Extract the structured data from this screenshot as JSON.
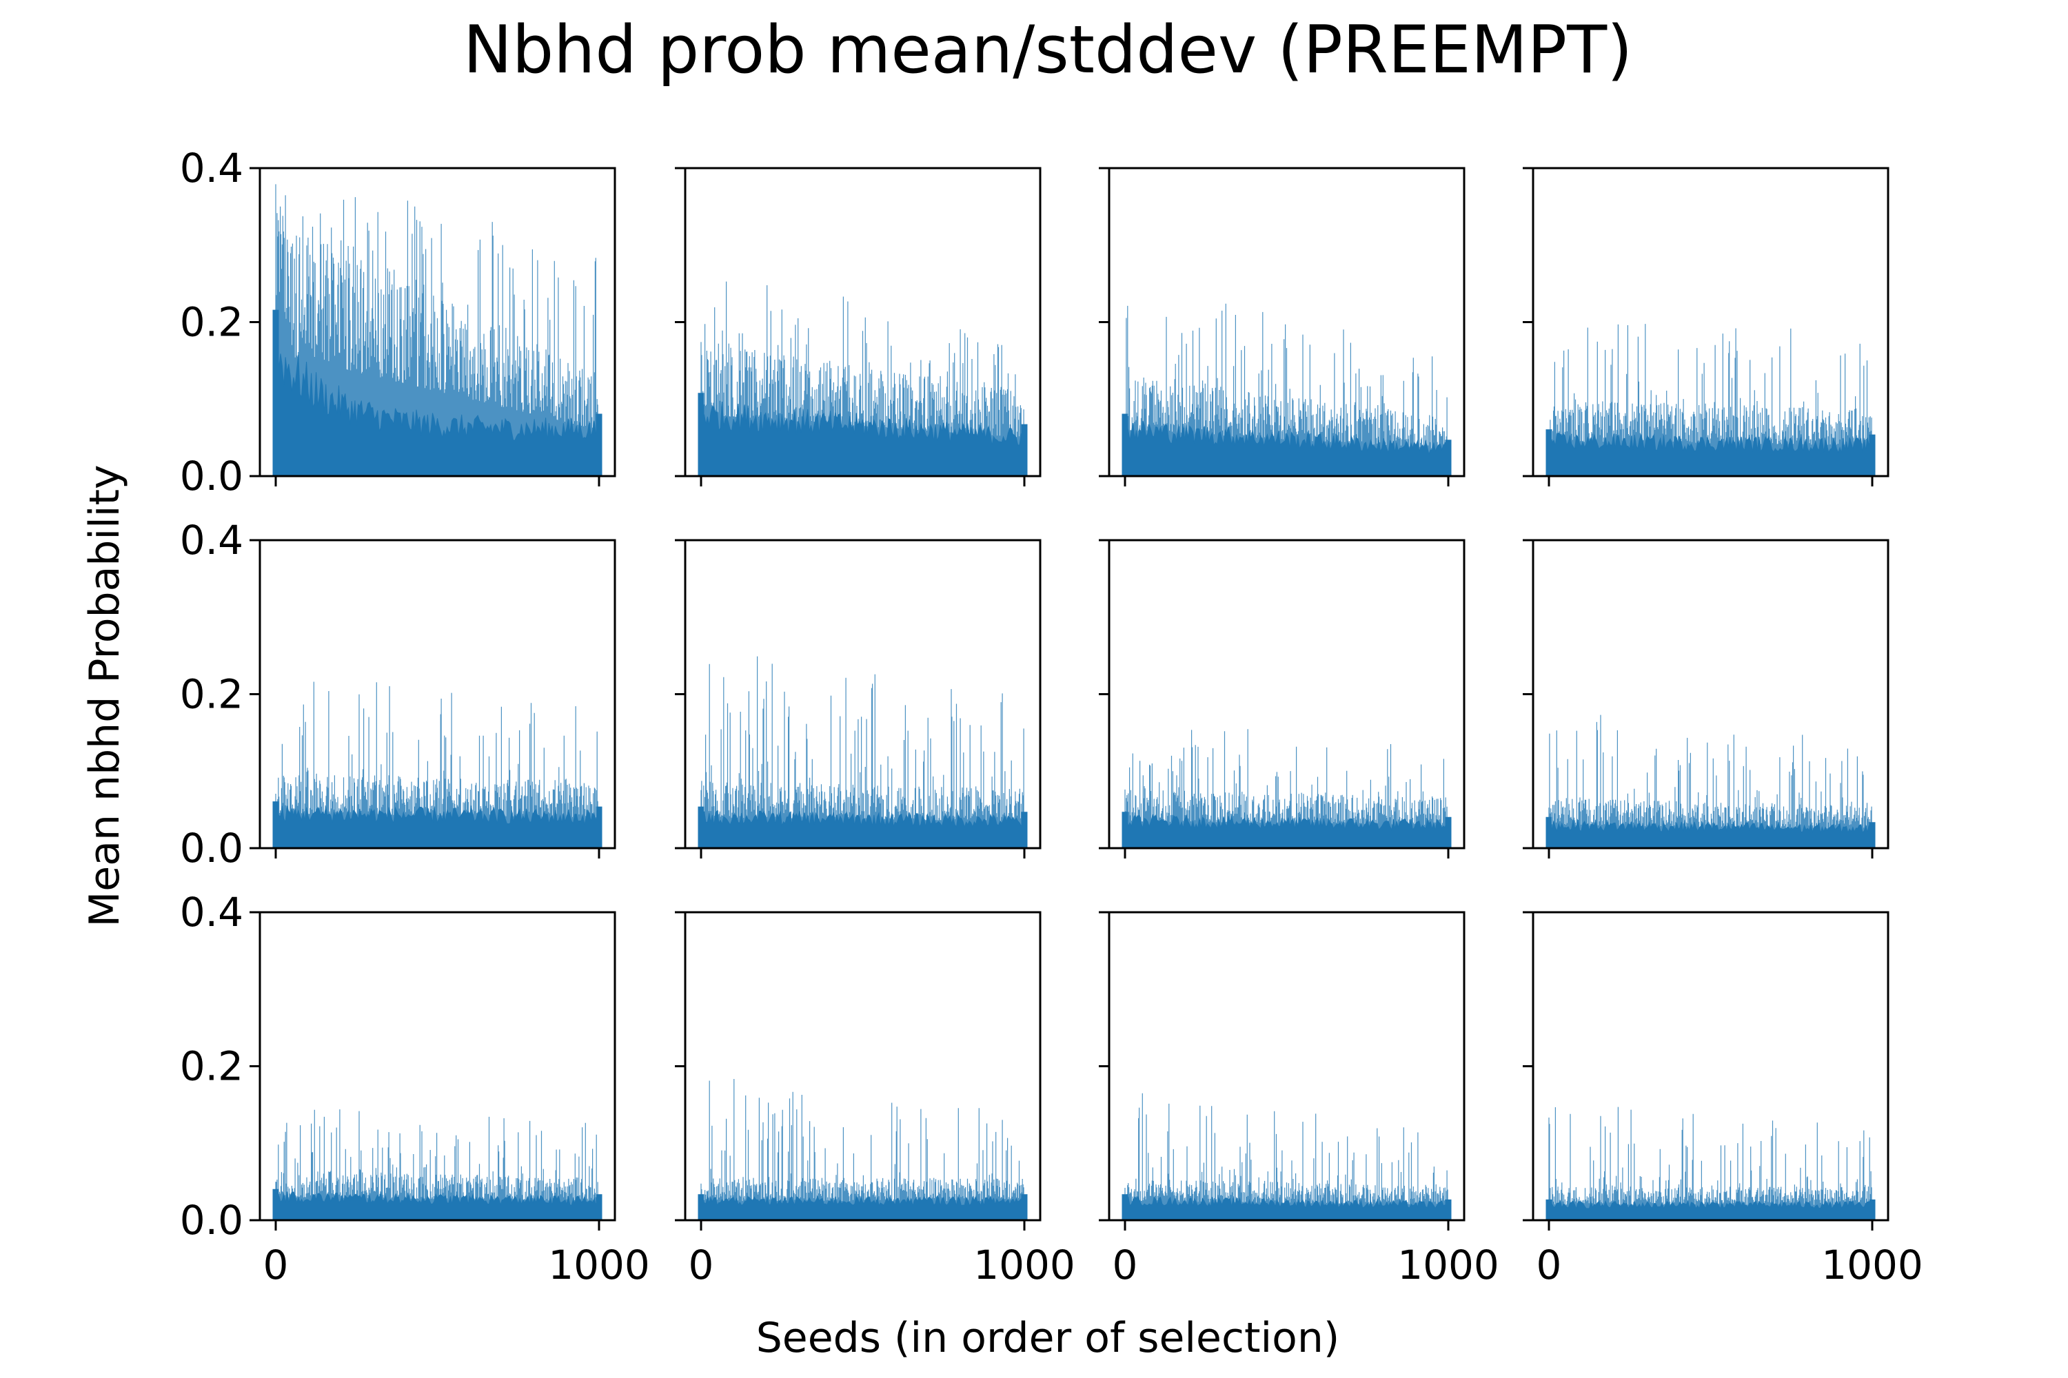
{
  "figure": {
    "title": "Nbhd prob mean/stddev (PREEMPT)",
    "xlabel": "Seeds (in order of selection)",
    "ylabel": "Mean nbhd Probability"
  },
  "chart_data": {
    "type": "bar",
    "layout": "3 rows x 4 columns, shared x and y axes",
    "title": "Nbhd prob mean/stddev (PREEMPT)",
    "xlabel": "Seeds (in order of selection)",
    "ylabel": "Mean nbhd Probability",
    "xlim": [
      0,
      1000
    ],
    "ylim": [
      0.0,
      0.4
    ],
    "xticks": [
      "0",
      "1000"
    ],
    "yticks": [
      "0.0",
      "0.2",
      "0.4"
    ],
    "series_color": "#1f77b4",
    "grid": false,
    "panels": [
      {
        "row": 1,
        "col": 1,
        "mean_start": 0.16,
        "mean_end": 0.06,
        "peak_start": 0.4,
        "peak_end": 0.3
      },
      {
        "row": 1,
        "col": 2,
        "mean_start": 0.08,
        "mean_end": 0.05,
        "peak_start": 0.28,
        "peak_end": 0.18
      },
      {
        "row": 1,
        "col": 3,
        "mean_start": 0.06,
        "mean_end": 0.035,
        "peak_start": 0.25,
        "peak_end": 0.17
      },
      {
        "row": 1,
        "col": 4,
        "mean_start": 0.045,
        "mean_end": 0.04,
        "peak_start": 0.23,
        "peak_end": 0.18
      },
      {
        "row": 2,
        "col": 1,
        "mean_start": 0.045,
        "mean_end": 0.04,
        "peak_start": 0.24,
        "peak_end": 0.18
      },
      {
        "row": 2,
        "col": 2,
        "mean_start": 0.04,
        "mean_end": 0.035,
        "peak_start": 0.26,
        "peak_end": 0.2
      },
      {
        "row": 2,
        "col": 3,
        "mean_start": 0.035,
        "mean_end": 0.03,
        "peak_start": 0.17,
        "peak_end": 0.13
      },
      {
        "row": 2,
        "col": 4,
        "mean_start": 0.03,
        "mean_end": 0.025,
        "peak_start": 0.18,
        "peak_end": 0.14
      },
      {
        "row": 3,
        "col": 1,
        "mean_start": 0.03,
        "mean_end": 0.025,
        "peak_start": 0.15,
        "peak_end": 0.13
      },
      {
        "row": 3,
        "col": 2,
        "mean_start": 0.025,
        "mean_end": 0.025,
        "peak_start": 0.19,
        "peak_end": 0.14
      },
      {
        "row": 3,
        "col": 3,
        "mean_start": 0.025,
        "mean_end": 0.02,
        "peak_start": 0.17,
        "peak_end": 0.12
      },
      {
        "row": 3,
        "col": 4,
        "mean_start": 0.02,
        "mean_end": 0.02,
        "peak_start": 0.16,
        "peak_end": 0.12
      }
    ]
  }
}
